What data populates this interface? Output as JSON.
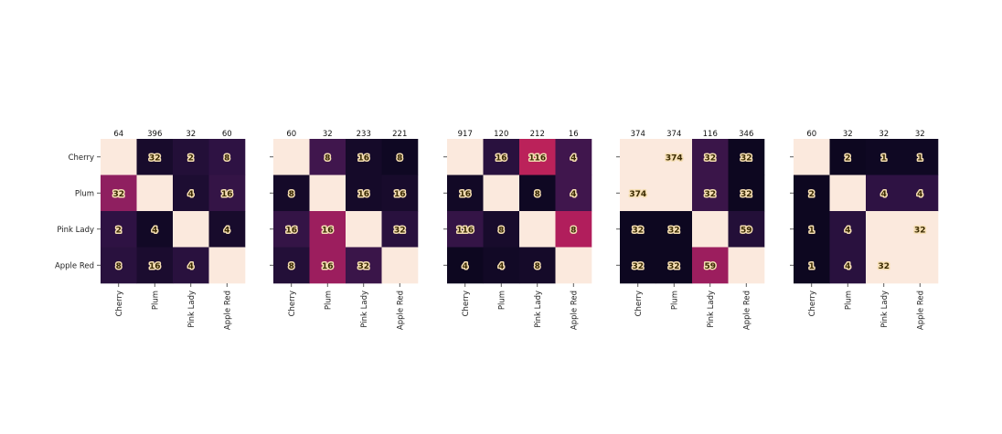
{
  "chart_data": {
    "type": "heatmap",
    "colors": {
      "light": "#fbe9dd",
      "dark": "#07051a",
      "scale": [
        "#07051a",
        "#2a1140",
        "#4e1a55",
        "#7c1f62",
        "#b11e5c",
        "#dc2e55",
        "#f2775a",
        "#f8b99c",
        "#fbe9dd"
      ]
    },
    "panels": [
      {
        "categories": [
          "Cherry",
          "Plum",
          "Pink Lady",
          "Apple Red"
        ],
        "column_totals": [
          "64",
          "396",
          "32",
          "60"
        ],
        "cells": [
          [
            null,
            32,
            2,
            8
          ],
          [
            32,
            null,
            4,
            16
          ],
          [
            2,
            4,
            null,
            4
          ],
          [
            8,
            16,
            4,
            null
          ]
        ],
        "labels": [
          [
            "",
            "32",
            "2",
            "8"
          ],
          [
            "32",
            "",
            "4",
            "16"
          ],
          [
            "2",
            "4",
            "",
            "4"
          ],
          [
            "8",
            "16",
            "4",
            ""
          ]
        ],
        "intensity": [
          [
            1.0,
            0.06,
            0.1,
            0.14
          ],
          [
            0.42,
            1.0,
            0.08,
            0.16
          ],
          [
            0.14,
            0.04,
            1.0,
            0.06
          ],
          [
            0.12,
            0.07,
            0.12,
            1.0
          ]
        ]
      },
      {
        "categories": [
          "Cherry",
          "Plum",
          "Pink Lady",
          "Apple Red"
        ],
        "column_totals": [
          "60",
          "32",
          "233",
          "221"
        ],
        "cells": [
          [
            null,
            8,
            16,
            8
          ],
          [
            8,
            null,
            16,
            16
          ],
          [
            16,
            16,
            null,
            32
          ],
          [
            8,
            16,
            32,
            null
          ]
        ],
        "labels": [
          [
            "",
            "8",
            "16",
            "8"
          ],
          [
            "8",
            "",
            "16",
            "16"
          ],
          [
            "16",
            "16",
            "",
            "32"
          ],
          [
            "8",
            "16",
            "32",
            ""
          ]
        ],
        "intensity": [
          [
            1.0,
            0.2,
            0.05,
            0.03
          ],
          [
            0.05,
            1.0,
            0.05,
            0.06
          ],
          [
            0.16,
            0.45,
            1.0,
            0.12
          ],
          [
            0.1,
            0.45,
            0.18,
            1.0
          ]
        ]
      },
      {
        "categories": [
          "Cherry",
          "Plum",
          "Pink Lady",
          "Apple Red"
        ],
        "column_totals": [
          "917",
          "120",
          "212",
          "16"
        ],
        "cells": [
          [
            null,
            16,
            116,
            4
          ],
          [
            16,
            null,
            8,
            4
          ],
          [
            116,
            8,
            null,
            8
          ],
          [
            4,
            4,
            8,
            null
          ]
        ],
        "labels": [
          [
            "",
            "16",
            "116",
            "4"
          ],
          [
            "16",
            "",
            "8",
            "4"
          ],
          [
            "116",
            "8",
            "",
            "8"
          ],
          [
            "4",
            "4",
            "8",
            ""
          ]
        ],
        "intensity": [
          [
            1.0,
            0.12,
            0.53,
            0.2
          ],
          [
            0.04,
            1.0,
            0.03,
            0.2
          ],
          [
            0.16,
            0.06,
            1.0,
            0.5
          ],
          [
            0.02,
            0.04,
            0.05,
            1.0
          ]
        ]
      },
      {
        "categories": [
          "Cherry",
          "Plum",
          "Pink Lady",
          "Apple Red"
        ],
        "column_totals": [
          "374",
          "374",
          "116",
          "346"
        ],
        "cells": [
          [
            null,
            374,
            32,
            32
          ],
          [
            374,
            null,
            32,
            32
          ],
          [
            32,
            32,
            null,
            59
          ],
          [
            32,
            32,
            59,
            null
          ]
        ],
        "labels": [
          [
            "",
            "374",
            "32",
            "32"
          ],
          [
            "374",
            "",
            "32",
            "32"
          ],
          [
            "32",
            "32",
            "",
            "59"
          ],
          [
            "32",
            "32",
            "59",
            ""
          ]
        ],
        "intensity": [
          [
            1.0,
            1.0,
            0.18,
            0.02
          ],
          [
            1.0,
            1.0,
            0.18,
            0.02
          ],
          [
            0.02,
            0.02,
            1.0,
            0.1
          ],
          [
            0.02,
            0.02,
            0.45,
            1.0
          ]
        ]
      },
      {
        "categories": [
          "Cherry",
          "Plum",
          "Pink Lady",
          "Apple Red"
        ],
        "column_totals": [
          "60",
          "32",
          "32",
          "32"
        ],
        "cells": [
          [
            null,
            2,
            1,
            1
          ],
          [
            2,
            null,
            4,
            4
          ],
          [
            1,
            4,
            null,
            32
          ],
          [
            1,
            4,
            32,
            null
          ]
        ],
        "labels": [
          [
            "",
            "2",
            "1",
            "1"
          ],
          [
            "2",
            "",
            "4",
            "4"
          ],
          [
            "1",
            "4",
            "",
            "32"
          ],
          [
            "1",
            "4",
            "32",
            ""
          ]
        ],
        "intensity": [
          [
            1.0,
            0.02,
            0.03,
            0.03
          ],
          [
            0.02,
            1.0,
            0.14,
            0.14
          ],
          [
            0.02,
            0.12,
            1.0,
            1.0
          ],
          [
            0.02,
            0.12,
            1.0,
            1.0
          ]
        ]
      }
    ]
  }
}
